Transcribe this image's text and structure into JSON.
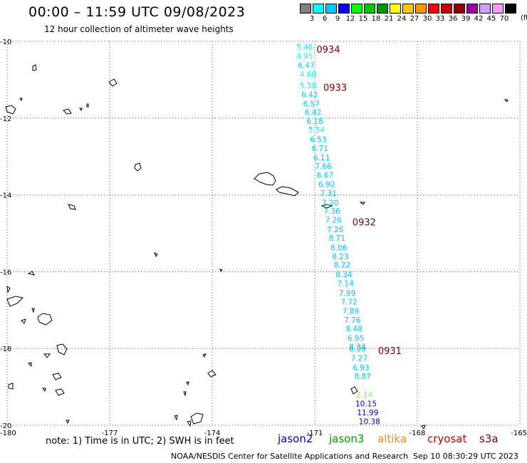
{
  "header": {
    "title": "00:00 – 11:59 UTC 09/08/2023",
    "subtitle": "12 hour collection of altimeter wave heights"
  },
  "legend": {
    "unit": "(ft)",
    "items": [
      {
        "label": "3",
        "color": "#808080"
      },
      {
        "label": "6",
        "color": "#00ffff"
      },
      {
        "label": "9",
        "color": "#00c8ff"
      },
      {
        "label": "12",
        "color": "#0000ff"
      },
      {
        "label": "15",
        "color": "#00ff00"
      },
      {
        "label": "18",
        "color": "#00c800"
      },
      {
        "label": "21",
        "color": "#009600"
      },
      {
        "label": "24",
        "color": "#ffff00"
      },
      {
        "label": "27",
        "color": "#ffc800"
      },
      {
        "label": "30",
        "color": "#ff9600"
      },
      {
        "label": "33",
        "color": "#ff0000"
      },
      {
        "label": "36",
        "color": "#c80000"
      },
      {
        "label": "39",
        "color": "#960000"
      },
      {
        "label": "42",
        "color": "#a000a0"
      },
      {
        "label": "45",
        "color": "#d2a0ff"
      },
      {
        "label": "70",
        "color": "#ff96ff"
      },
      {
        "label": "",
        "color": "#000000"
      }
    ]
  },
  "map": {
    "lon_labels": [
      "-180",
      "-177",
      "-174",
      "-171",
      "-168",
      "-165"
    ],
    "lat_labels": [
      "-10",
      "-12",
      "-14",
      "-16",
      "-18",
      "-20"
    ],
    "track": [
      {
        "lon": -171.3,
        "lat": -10.15,
        "text": "5.46",
        "color": "#00ffff"
      },
      {
        "lon": -171.3,
        "lat": -10.38,
        "text": "4.95",
        "color": "#00ffff"
      },
      {
        "lon": -171.25,
        "lat": -10.62,
        "text": "6.47",
        "color": "#00c8ff"
      },
      {
        "lon": -171.2,
        "lat": -10.85,
        "text": "4.60",
        "color": "#00ffff"
      },
      {
        "lon": -171.2,
        "lat": -11.15,
        "text": "5.38",
        "color": "#00ffff"
      },
      {
        "lon": -171.15,
        "lat": -11.38,
        "text": "6.42",
        "color": "#00c8ff"
      },
      {
        "lon": -171.1,
        "lat": -11.62,
        "text": "6.57",
        "color": "#00c8ff"
      },
      {
        "lon": -171.05,
        "lat": -11.85,
        "text": "6.42",
        "color": "#00c8ff"
      },
      {
        "lon": -171.0,
        "lat": -12.08,
        "text": "6.18",
        "color": "#00c8ff"
      },
      {
        "lon": -170.95,
        "lat": -12.3,
        "text": "5.54",
        "color": "#00ffff"
      },
      {
        "lon": -170.9,
        "lat": -12.55,
        "text": "6.53",
        "color": "#00c8ff"
      },
      {
        "lon": -170.85,
        "lat": -12.78,
        "text": "6.71",
        "color": "#00c8ff"
      },
      {
        "lon": -170.8,
        "lat": -13.02,
        "text": "6.11",
        "color": "#00c8ff"
      },
      {
        "lon": -170.75,
        "lat": -13.25,
        "text": "7.66",
        "color": "#00c8ff"
      },
      {
        "lon": -170.7,
        "lat": -13.48,
        "text": "6.67",
        "color": "#00c8ff"
      },
      {
        "lon": -170.65,
        "lat": -13.72,
        "text": "6.92",
        "color": "#00c8ff"
      },
      {
        "lon": -170.6,
        "lat": -13.95,
        "text": "7.31",
        "color": "#00c8ff"
      },
      {
        "lon": -170.55,
        "lat": -14.2,
        "text": "7.20",
        "color": "#00c8ff"
      },
      {
        "lon": -170.5,
        "lat": -14.42,
        "text": "7.36",
        "color": "#00c8ff"
      },
      {
        "lon": -170.45,
        "lat": -14.65,
        "text": "7.26",
        "color": "#00c8ff"
      },
      {
        "lon": -170.4,
        "lat": -14.9,
        "text": "7.26",
        "color": "#00c8ff"
      },
      {
        "lon": -170.35,
        "lat": -15.12,
        "text": "8.71",
        "color": "#00c8ff"
      },
      {
        "lon": -170.3,
        "lat": -15.37,
        "text": "8.06",
        "color": "#00c8ff"
      },
      {
        "lon": -170.25,
        "lat": -15.6,
        "text": "8.23",
        "color": "#00c8ff"
      },
      {
        "lon": -170.2,
        "lat": -15.82,
        "text": "8.22",
        "color": "#00c8ff"
      },
      {
        "lon": -170.15,
        "lat": -16.07,
        "text": "8.34",
        "color": "#00c8ff"
      },
      {
        "lon": -170.1,
        "lat": -16.3,
        "text": "7.14",
        "color": "#00c8ff"
      },
      {
        "lon": -170.05,
        "lat": -16.55,
        "text": "7.99",
        "color": "#00c8ff"
      },
      {
        "lon": -170.0,
        "lat": -16.78,
        "text": "7.72",
        "color": "#00c8ff"
      },
      {
        "lon": -169.95,
        "lat": -17.02,
        "text": "7.89",
        "color": "#00c8ff"
      },
      {
        "lon": -169.9,
        "lat": -17.25,
        "text": "7.76",
        "color": "#00c8ff"
      },
      {
        "lon": -169.85,
        "lat": -17.48,
        "text": "8.48",
        "color": "#00c8ff"
      },
      {
        "lon": -169.8,
        "lat": -17.73,
        "text": "6.95",
        "color": "#00c8ff"
      },
      {
        "lon": -169.75,
        "lat": -17.95,
        "text": "8.34",
        "color": "#00c8ff"
      },
      {
        "lon": -169.75,
        "lat": -18.0,
        "text": "8.99",
        "color": "#00c8ff"
      },
      {
        "lon": -169.7,
        "lat": -18.25,
        "text": "7.27",
        "color": "#00c8ff"
      },
      {
        "lon": -169.65,
        "lat": -18.5,
        "text": "6.93",
        "color": "#00c8ff"
      },
      {
        "lon": -169.6,
        "lat": -18.72,
        "text": "8.87",
        "color": "#00c8ff"
      },
      {
        "lon": -169.55,
        "lat": -19.2,
        "text": "2.14",
        "color": "#80ff40"
      },
      {
        "lon": -169.5,
        "lat": -19.43,
        "text": "10.15",
        "color": "#0000c8"
      },
      {
        "lon": -169.45,
        "lat": -19.67,
        "text": "11.99",
        "color": "#0000c8"
      },
      {
        "lon": -169.4,
        "lat": -19.9,
        "text": "10.38",
        "color": "#0000c8"
      }
    ],
    "time_labels": [
      {
        "lon": -170.95,
        "lat": -10.2,
        "text": "0934"
      },
      {
        "lon": -170.75,
        "lat": -11.2,
        "text": "0933"
      },
      {
        "lon": -169.9,
        "lat": -14.7,
        "text": "0932"
      },
      {
        "lon": -169.15,
        "lat": -18.05,
        "text": "0931"
      }
    ]
  },
  "footer": {
    "note": "note: 1) Time is in UTC; 2) SWH is in feet",
    "satellites": [
      {
        "name": "jason2",
        "color": "#0000c8"
      },
      {
        "name": "jason3",
        "color": "#00a000"
      },
      {
        "name": "altika",
        "color": "#ff8c00"
      },
      {
        "name": "cryosat",
        "color": "#c80000"
      },
      {
        "name": "s3a",
        "color": "#800000"
      }
    ],
    "credit": "NOAA/NESDIS Center for Satellite Applications and Research",
    "timestamp": "Sep 10 08:30:29 UTC 2023"
  }
}
